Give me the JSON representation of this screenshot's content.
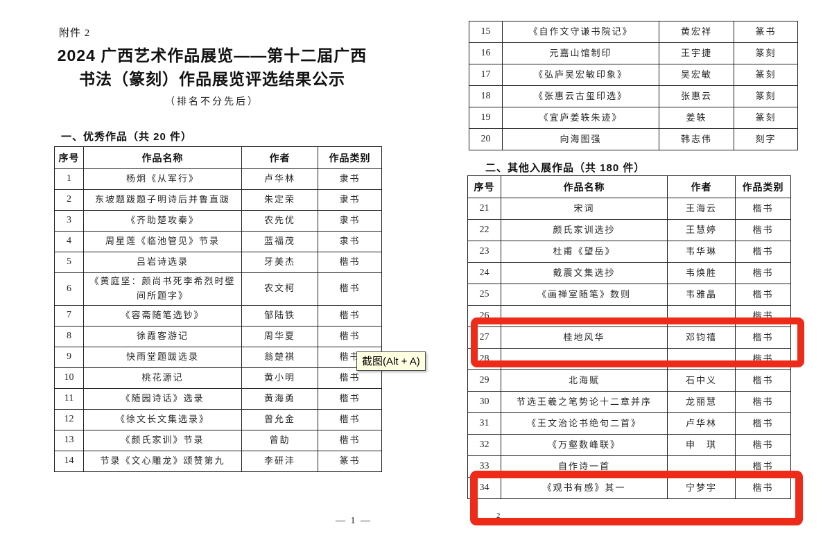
{
  "page": {
    "attachment_label": "附件 2",
    "title_line1": "2024 广西艺术作品展览——第十二届广西",
    "title_line2": "书法（篆刻）作品展览评选结果公示",
    "subtitle": "（排名不分先后）",
    "page_number_left": "— 1 —",
    "page_number_right_partial": "2"
  },
  "section1": {
    "heading": "一、优秀作品（共 20 件）",
    "columns": [
      "序号",
      "作品名称",
      "作者",
      "作品类别"
    ],
    "rows": [
      {
        "no": "1",
        "title": "杨炯《从军行》",
        "author": "卢华林",
        "category": "隶书"
      },
      {
        "no": "2",
        "title": "东坡题跋题子明诗后并鲁直跋",
        "author": "朱定荣",
        "category": "隶书"
      },
      {
        "no": "3",
        "title": "《齐助楚攻秦》",
        "author": "农先优",
        "category": "隶书"
      },
      {
        "no": "4",
        "title": "周星莲《临池管见》节录",
        "author": "蓝福茂",
        "category": "隶书"
      },
      {
        "no": "5",
        "title": "吕岩诗选录",
        "author": "牙美杰",
        "category": "楷书"
      },
      {
        "no": "6",
        "title": "《黄庭坚：颜尚书死李希烈时壁间所题字》",
        "author": "农文柯",
        "category": "楷书"
      },
      {
        "no": "7",
        "title": "《容斋随笔选钞》",
        "author": "邹陆铁",
        "category": "楷书"
      },
      {
        "no": "8",
        "title": "徐霞客游记",
        "author": "周华夏",
        "category": "楷书"
      },
      {
        "no": "9",
        "title": "快雨堂题跋选录",
        "author": "翁楚祺",
        "category": "楷书"
      },
      {
        "no": "10",
        "title": "桃花源记",
        "author": "黄小明",
        "category": "楷书"
      },
      {
        "no": "11",
        "title": "《随园诗话》选录",
        "author": "黄海勇",
        "category": "楷书"
      },
      {
        "no": "12",
        "title": "《徐文长文集选录》",
        "author": "曾允金",
        "category": "楷书"
      },
      {
        "no": "13",
        "title": "《颜氏家训》节录",
        "author": "曾劼",
        "category": "楷书"
      },
      {
        "no": "14",
        "title": "节录《文心雕龙》颂赞第九",
        "author": "李研沣",
        "category": "篆书"
      }
    ],
    "rows_continued": [
      {
        "no": "15",
        "title": "《自作文守谦书院记》",
        "author": "黄宏祥",
        "category": "篆书"
      },
      {
        "no": "16",
        "title": "元嘉山馆制印",
        "author": "王宇捷",
        "category": "篆刻"
      },
      {
        "no": "17",
        "title": "《弘庐吴宏敏印象》",
        "author": "吴宏敏",
        "category": "篆刻"
      },
      {
        "no": "18",
        "title": "《张惠云古玺印选》",
        "author": "张惠云",
        "category": "篆刻"
      },
      {
        "no": "19",
        "title": "《宜庐姜轶朱迹》",
        "author": "姜轶",
        "category": "篆刻"
      },
      {
        "no": "20",
        "title": "向海图强",
        "author": "韩志伟",
        "category": "刻字"
      }
    ]
  },
  "section2": {
    "heading": "二、其他入展作品（共 180 件）",
    "columns": [
      "序号",
      "作品名称",
      "作者",
      "作品类别"
    ],
    "rows": [
      {
        "no": "21",
        "title": "宋词",
        "author": "王海云",
        "category": "楷书"
      },
      {
        "no": "22",
        "title": "颜氏家训选抄",
        "author": "王慧婷",
        "category": "楷书"
      },
      {
        "no": "23",
        "title": "杜甫《望岳》",
        "author": "韦华琳",
        "category": "楷书"
      },
      {
        "no": "24",
        "title": "戴震文集选抄",
        "author": "韦焕胜",
        "category": "楷书"
      },
      {
        "no": "25",
        "title": "《画禅室随笔》数则",
        "author": "韦雅晶",
        "category": "楷书"
      },
      {
        "no": "26",
        "title": "",
        "author": "",
        "category": "楷书"
      },
      {
        "no": "27",
        "title": "桂地风华",
        "author": "邓钧禧",
        "category": "楷书"
      },
      {
        "no": "28",
        "title": "",
        "author": "",
        "category": "楷书"
      },
      {
        "no": "29",
        "title": "北海赋",
        "author": "石中义",
        "category": "楷书"
      },
      {
        "no": "30",
        "title": "节选王羲之笔势论十二章并序",
        "author": "龙丽慧",
        "category": "楷书"
      },
      {
        "no": "31",
        "title": "《王文治论书绝句二首》",
        "author": "卢华林",
        "category": "楷书"
      },
      {
        "no": "32",
        "title": "《万壑数峰联》",
        "author": "申　琪",
        "category": "楷书"
      },
      {
        "no": "33",
        "title": "自作诗一首",
        "author": "",
        "category": "楷书"
      },
      {
        "no": "34",
        "title": "《观书有感》其一",
        "author": "宁梦宇",
        "category": "楷书"
      }
    ]
  },
  "tooltip": {
    "text": "截图(Alt + A)",
    "bg": "#ffffe1"
  },
  "annotations": {
    "highlight_color": "#ed2b18",
    "boxes": [
      "rows-26-to-28",
      "rows-33-to-34"
    ]
  }
}
